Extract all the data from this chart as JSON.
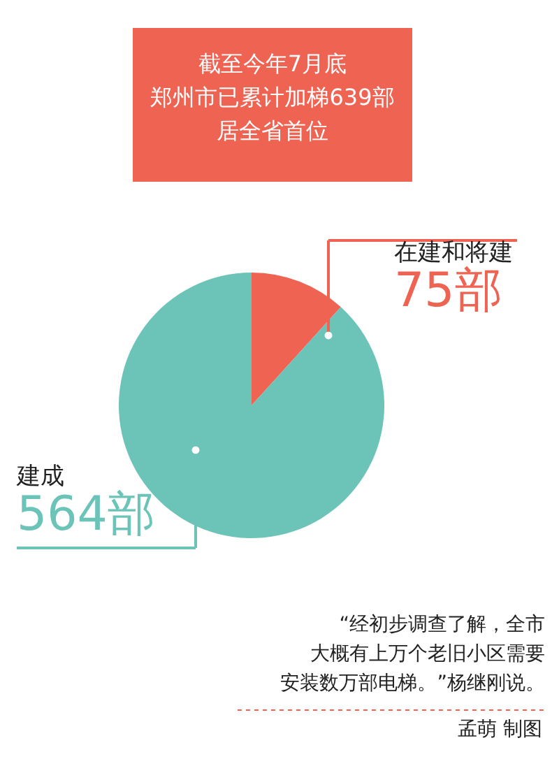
{
  "chart_data": {
    "type": "pie",
    "title": "截至今年7月底郑州市已累计加梯639部居全省首位",
    "categories": [
      "在建和将建",
      "建成"
    ],
    "values": [
      75,
      564
    ],
    "colors": [
      "#ee6352",
      "#6cc4b8"
    ],
    "value_labels": [
      "75部",
      "564部"
    ],
    "annotations": [
      "“经初步调查了解，全市大概有上万个老旧小区需要安装数万部电梯。”杨继刚说。",
      "孟萌  制图"
    ]
  }
}
